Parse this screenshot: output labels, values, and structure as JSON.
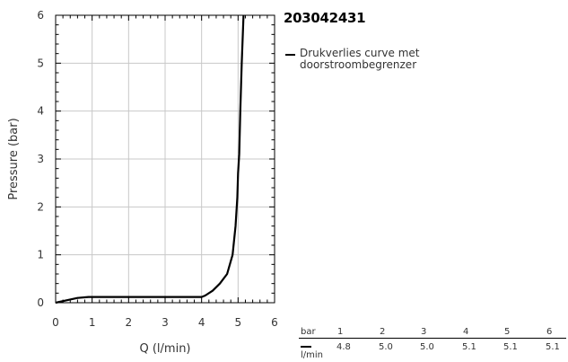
{
  "title": "203042431",
  "legend": {
    "label": "Drukverlies curve met doorstroombegrenzer"
  },
  "chart_data": {
    "type": "line",
    "xlabel": "Q (l/min)",
    "ylabel": "Pressure (bar)",
    "xlim": [
      0,
      6
    ],
    "ylim": [
      0,
      6
    ],
    "xticks": [
      0,
      1,
      2,
      3,
      4,
      5,
      6
    ],
    "yticks": [
      0,
      1,
      2,
      3,
      4,
      5,
      6
    ],
    "grid": true,
    "series": [
      {
        "name": "Drukverlies curve met doorstroombegrenzer",
        "color": "#000000",
        "x": [
          0,
          0.3,
          0.6,
          0.9,
          1.0,
          1.5,
          2.0,
          2.5,
          3.0,
          3.5,
          4.0,
          4.1,
          4.3,
          4.5,
          4.7,
          4.85,
          4.93,
          4.98,
          5.0,
          5.03,
          5.06,
          5.1,
          5.15
        ],
        "y": [
          0,
          0.05,
          0.1,
          0.12,
          0.12,
          0.12,
          0.12,
          0.12,
          0.12,
          0.12,
          0.12,
          0.15,
          0.25,
          0.4,
          0.6,
          1.0,
          1.6,
          2.2,
          2.7,
          3.1,
          4.0,
          5.0,
          6.0
        ]
      }
    ]
  },
  "table": {
    "bar_label": "bar",
    "unit_label": "l/min",
    "bar": [
      "1",
      "2",
      "3",
      "4",
      "5",
      "6"
    ],
    "flow": [
      "4.8",
      "5.0",
      "5.0",
      "5.1",
      "5.1",
      "5.1"
    ]
  }
}
